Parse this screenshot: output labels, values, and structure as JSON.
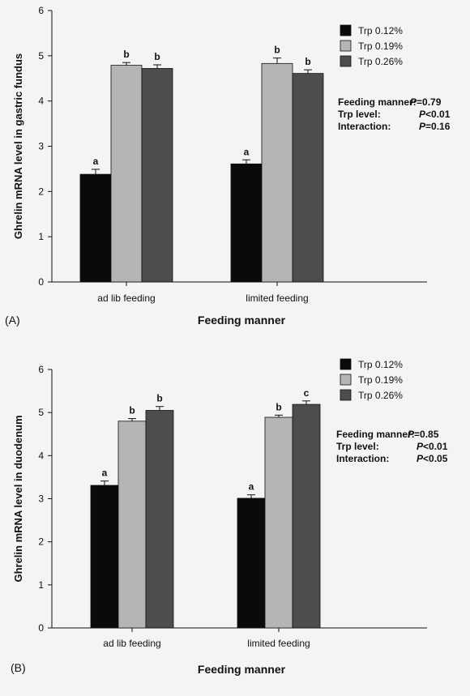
{
  "colors": {
    "series": [
      "#0a0a0a",
      "#b5b5b5",
      "#4d4d4d"
    ]
  },
  "chart_data": [
    {
      "type": "bar",
      "panel_label": "(A)",
      "ylabel": "Ghrelin mRNA level in gastric fundus",
      "xlabel": "Feeding manner",
      "ylim": [
        0,
        6
      ],
      "yticks": [
        "0",
        "1",
        "2",
        "3",
        "4",
        "5",
        "6"
      ],
      "categories": [
        "ad lib feeding",
        "limited feeding"
      ],
      "series": [
        {
          "name": "Trp 0.12%",
          "values": [
            2.38,
            2.61
          ],
          "errors": [
            0.11,
            0.09
          ],
          "letters": [
            "a",
            "a"
          ]
        },
        {
          "name": "Trp 0.19%",
          "values": [
            4.79,
            4.83
          ],
          "errors": [
            0.06,
            0.12
          ],
          "letters": [
            "b",
            "b"
          ]
        },
        {
          "name": "Trp 0.26%",
          "values": [
            4.72,
            4.61
          ],
          "errors": [
            0.08,
            0.08
          ],
          "letters": [
            "b",
            "b"
          ]
        }
      ],
      "stats": [
        {
          "label": "Feeding manner:",
          "p_symbol": "P",
          "p_value": "=0.79"
        },
        {
          "label": "Trp level:",
          "p_symbol": "P",
          "p_value": "<0.01"
        },
        {
          "label": "Interaction:",
          "p_symbol": "P",
          "p_value": "=0.16"
        }
      ],
      "grid": false,
      "legend_position": "top-right"
    },
    {
      "type": "bar",
      "panel_label": "(B)",
      "ylabel": "Ghrelin mRNA level in duodenum",
      "xlabel": "Feeding manner",
      "ylim": [
        0,
        6
      ],
      "yticks": [
        "0",
        "1",
        "2",
        "3",
        "4",
        "5",
        "6"
      ],
      "categories": [
        "ad lib feeding",
        "limited feeding"
      ],
      "series": [
        {
          "name": "Trp 0.12%",
          "values": [
            3.31,
            3.01
          ],
          "errors": [
            0.1,
            0.08
          ],
          "letters": [
            "a",
            "a"
          ]
        },
        {
          "name": "Trp 0.19%",
          "values": [
            4.8,
            4.89
          ],
          "errors": [
            0.06,
            0.05
          ],
          "letters": [
            "b",
            "b"
          ]
        },
        {
          "name": "Trp 0.26%",
          "values": [
            5.05,
            5.19
          ],
          "errors": [
            0.09,
            0.08
          ],
          "letters": [
            "b",
            "c"
          ]
        }
      ],
      "stats": [
        {
          "label": "Feeding manner:",
          "p_symbol": "P",
          "p_value": "=0.85"
        },
        {
          "label": "Trp level:",
          "p_symbol": "P",
          "p_value": "<0.01"
        },
        {
          "label": "Interaction:",
          "p_symbol": "P",
          "p_value": "<0.05"
        }
      ],
      "grid": false,
      "legend_position": "top-right"
    }
  ]
}
